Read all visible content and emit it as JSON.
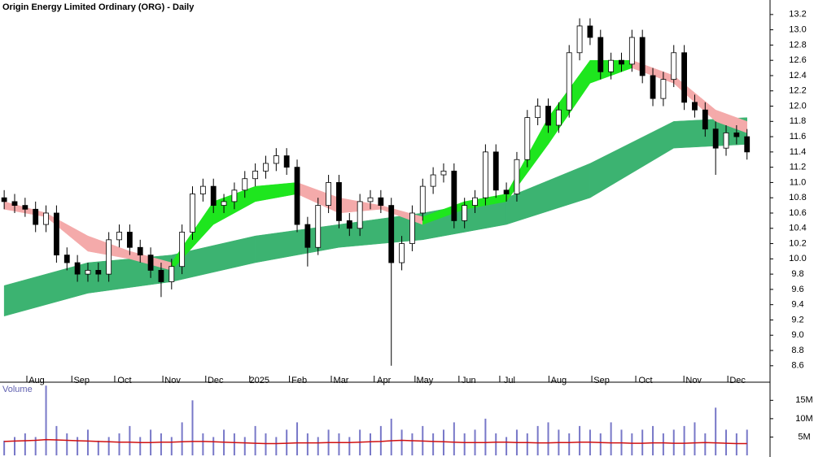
{
  "chart_data": [
    {
      "type": "candlestick",
      "title": "Origin Energy Limited Ordinary (ORG) - Daily",
      "xticks": [
        {
          "value": 3.1,
          "label": "Aug"
        },
        {
          "value": 7.4,
          "label": "Sep"
        },
        {
          "value": 11.5,
          "label": "Oct"
        },
        {
          "value": 16.1,
          "label": "Nov"
        },
        {
          "value": 20.2,
          "label": "Dec"
        },
        {
          "value": 24.4,
          "label": "2025"
        },
        {
          "value": 28.2,
          "label": "Feb"
        },
        {
          "value": 32.2,
          "label": "Mar"
        },
        {
          "value": 36.3,
          "label": "Apr"
        },
        {
          "value": 40.2,
          "label": "May"
        },
        {
          "value": 44.4,
          "label": "Jun"
        },
        {
          "value": 48.3,
          "label": "Jul"
        },
        {
          "value": 53.0,
          "label": "Aug"
        },
        {
          "value": 57.1,
          "label": "Sep"
        },
        {
          "value": 61.3,
          "label": "Oct"
        },
        {
          "value": 65.9,
          "label": "Nov"
        },
        {
          "value": 70.1,
          "label": "Dec"
        }
      ],
      "xlim": [
        -0.4,
        73.2
      ],
      "ylim": [
        8.47,
        13.39
      ],
      "yticks": [
        8.6,
        8.8,
        {
          "value": 9,
          "label": "9.0"
        },
        9.2,
        9.4,
        9.6,
        9.8,
        {
          "value": 10,
          "label": "10.0"
        },
        10.2,
        10.4,
        10.6,
        10.8,
        {
          "value": 11,
          "label": "11.0"
        },
        11.2,
        11.4,
        11.6,
        11.8,
        {
          "value": 12,
          "label": "12.0"
        },
        12.2,
        12.4,
        12.6,
        12.8,
        {
          "value": 13,
          "label": "13.0"
        },
        13.2
      ],
      "up_color": "#ffffff",
      "down_color": "#000000",
      "edge_color": "#000000",
      "open": [
        10.8,
        10.75,
        10.7,
        10.65,
        10.45,
        10.6,
        10.05,
        9.95,
        9.8,
        9.85,
        9.8,
        10.25,
        10.35,
        10.15,
        10.05,
        9.85,
        9.7,
        9.9,
        10.35,
        10.85,
        10.95,
        10.7,
        10.75,
        10.9,
        11.05,
        11.15,
        11.25,
        11.35,
        11.2,
        10.45,
        10.15,
        10.7,
        11.0,
        10.5,
        10.4,
        10.75,
        10.8,
        10.7,
        9.95,
        10.2,
        10.6,
        10.95,
        11.1,
        11.15,
        10.5,
        10.7,
        10.8,
        11.4,
        10.9,
        10.85,
        11.3,
        11.85,
        12.0,
        11.75,
        11.95,
        12.7,
        13.05,
        12.9,
        12.45,
        12.6,
        12.55,
        12.9,
        12.4,
        12.1,
        12.35,
        12.7,
        12.05,
        11.95,
        11.7,
        11.45,
        11.65,
        11.6
      ],
      "high": [
        10.9,
        10.85,
        10.8,
        10.75,
        10.7,
        10.7,
        10.15,
        10.05,
        9.95,
        9.95,
        10.35,
        10.45,
        10.45,
        10.25,
        10.15,
        9.95,
        10.0,
        10.45,
        10.95,
        11.05,
        11.05,
        10.85,
        11.0,
        11.15,
        11.25,
        11.35,
        11.45,
        11.45,
        11.3,
        10.55,
        10.8,
        11.1,
        11.1,
        10.6,
        10.85,
        10.9,
        10.9,
        10.8,
        10.3,
        10.7,
        11.05,
        11.2,
        11.25,
        11.25,
        10.8,
        10.9,
        11.5,
        11.5,
        11.0,
        11.4,
        11.95,
        12.1,
        12.1,
        12.05,
        12.8,
        13.15,
        13.15,
        13.0,
        12.7,
        12.7,
        13.0,
        13.0,
        12.5,
        12.45,
        12.8,
        12.8,
        12.15,
        12.05,
        11.8,
        11.75,
        11.75,
        11.7
      ],
      "low": [
        10.65,
        10.6,
        10.55,
        10.35,
        10.35,
        9.95,
        9.85,
        9.7,
        9.7,
        9.7,
        9.7,
        10.15,
        10.05,
        9.95,
        9.75,
        9.5,
        9.6,
        9.8,
        10.25,
        10.75,
        10.6,
        10.6,
        10.65,
        10.8,
        10.95,
        11.05,
        11.15,
        11.1,
        10.35,
        9.9,
        10.05,
        10.6,
        10.4,
        10.3,
        10.3,
        10.65,
        10.6,
        8.6,
        9.85,
        10.1,
        10.5,
        10.85,
        11.0,
        10.4,
        10.4,
        10.6,
        10.7,
        10.8,
        10.75,
        10.75,
        11.2,
        11.75,
        11.65,
        11.65,
        11.85,
        12.6,
        12.8,
        12.35,
        12.35,
        12.45,
        12.45,
        12.3,
        12.0,
        12.0,
        12.25,
        11.95,
        11.85,
        11.6,
        11.1,
        11.35,
        11.5,
        11.3
      ],
      "close": [
        10.75,
        10.7,
        10.65,
        10.45,
        10.6,
        10.05,
        9.95,
        9.8,
        9.85,
        9.8,
        10.25,
        10.35,
        10.15,
        10.05,
        9.85,
        9.7,
        9.9,
        10.35,
        10.85,
        10.95,
        10.7,
        10.75,
        10.9,
        11.05,
        11.15,
        11.25,
        11.35,
        11.2,
        10.45,
        10.15,
        10.7,
        11.0,
        10.5,
        10.4,
        10.75,
        10.8,
        10.7,
        9.95,
        10.2,
        10.6,
        10.95,
        11.1,
        11.15,
        10.5,
        10.7,
        10.8,
        11.4,
        10.9,
        10.85,
        11.3,
        11.85,
        12.0,
        11.75,
        11.95,
        12.7,
        13.05,
        12.9,
        12.45,
        12.6,
        12.55,
        12.9,
        12.4,
        12.1,
        12.35,
        12.7,
        12.05,
        11.95,
        11.7,
        11.45,
        11.65,
        11.6,
        11.4
      ],
      "long_band": {
        "color": "#3cb371",
        "x": [
          0,
          8,
          16,
          24,
          32,
          40,
          48,
          56,
          64,
          71
        ],
        "upper": [
          9.65,
          9.95,
          10.05,
          10.3,
          10.45,
          10.6,
          10.8,
          11.25,
          11.8,
          11.85
        ],
        "lower": [
          9.25,
          9.55,
          9.7,
          9.95,
          10.15,
          10.25,
          10.45,
          10.8,
          11.45,
          11.5
        ]
      },
      "short_band": {
        "up_color": "#1ee61e",
        "down_color": "#f4aaaa",
        "x": [
          0,
          4,
          8,
          12,
          16,
          20,
          24,
          28,
          32,
          36,
          40,
          44,
          48,
          52,
          56,
          60,
          64,
          68,
          71
        ],
        "upper": [
          10.75,
          10.6,
          10.3,
          10.1,
          9.95,
          10.75,
          10.95,
          11.0,
          10.8,
          10.7,
          10.55,
          10.75,
          10.85,
          11.85,
          12.6,
          12.6,
          12.4,
          11.95,
          11.8
        ],
        "lower": [
          10.65,
          10.55,
          10.1,
          10.0,
          9.85,
          10.45,
          10.75,
          10.85,
          10.6,
          10.65,
          10.45,
          10.65,
          10.75,
          11.5,
          12.3,
          12.5,
          12.3,
          11.8,
          11.65
        ]
      }
    },
    {
      "type": "bar",
      "title": "Volume",
      "color": "#7878c8",
      "ylim": [
        0,
        19.5
      ],
      "yticks": [
        {
          "value": 5,
          "label": "5M"
        },
        {
          "value": 10,
          "label": "10M"
        },
        {
          "value": 15,
          "label": "15M"
        }
      ],
      "values": [
        4,
        5,
        6,
        5,
        19,
        8,
        6,
        5,
        7,
        4,
        5,
        6,
        8,
        5,
        7,
        6,
        5,
        9,
        15,
        6,
        5,
        7,
        6,
        5,
        8,
        6,
        5,
        7,
        9,
        6,
        5,
        7,
        6,
        5,
        7,
        6,
        8,
        10,
        7,
        6,
        8,
        6,
        7,
        9,
        6,
        7,
        10,
        6,
        5,
        7,
        6,
        8,
        9,
        7,
        6,
        8,
        7,
        6,
        9,
        7,
        6,
        7,
        8,
        6,
        7,
        8,
        9,
        6,
        13,
        7,
        6,
        7
      ],
      "average": {
        "color": "#d01010",
        "values": [
          3.8,
          3.9,
          4.0,
          4.1,
          4.3,
          4.2,
          4.1,
          4.0,
          3.9,
          3.8,
          3.7,
          3.6,
          3.6,
          3.5,
          3.5,
          3.6,
          3.6,
          3.7,
          3.8,
          3.8,
          3.7,
          3.6,
          3.5,
          3.4,
          3.3,
          3.2,
          3.2,
          3.3,
          3.4,
          3.4,
          3.4,
          3.5,
          3.5,
          3.5,
          3.6,
          3.7,
          3.8,
          4.0,
          4.1,
          4.0,
          3.9,
          3.8,
          3.7,
          3.6,
          3.5,
          3.5,
          3.5,
          3.6,
          3.6,
          3.5,
          3.5,
          3.4,
          3.4,
          3.5,
          3.5,
          3.6,
          3.6,
          3.5,
          3.4,
          3.4,
          3.3,
          3.3,
          3.4,
          3.4,
          3.3,
          3.3,
          3.4,
          3.5,
          3.4,
          3.3,
          3.2,
          3.2
        ]
      }
    }
  ]
}
